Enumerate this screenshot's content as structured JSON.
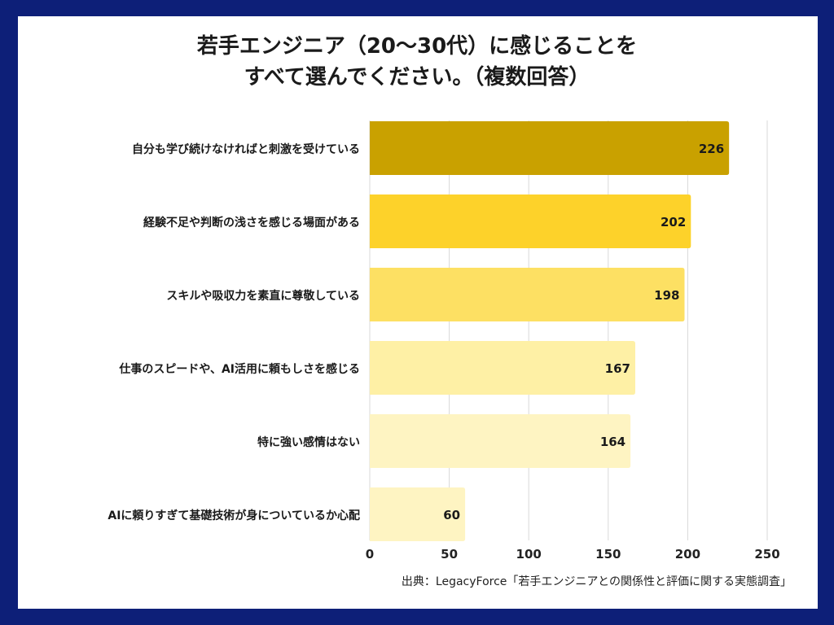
{
  "chart_data": {
    "type": "bar",
    "orientation": "horizontal",
    "title_lines": [
      "若手エンジニア（20〜30代）に感じることを",
      "すべて選んでください。（複数回答）"
    ],
    "categories": [
      "自分も学び続けなければと刺激を受けている",
      "経験不足や判断の浅さを感じる場面がある",
      "スキルや吸収力を素直に尊敬している",
      "仕事のスピードや、AI活用に頼もしさを感じる",
      "特に強い感情はない",
      "AIに頼りすぎて基礎技術が身についているか心配"
    ],
    "values": [
      226,
      202,
      198,
      167,
      164,
      60
    ],
    "colors": [
      "#c9a100",
      "#fdd22a",
      "#fde063",
      "#fef0a5",
      "#fef4c2",
      "#fef4c2"
    ],
    "xlim": [
      0,
      250
    ],
    "xticks": [
      0,
      50,
      100,
      150,
      200,
      250
    ],
    "xlabel": "",
    "ylabel": "",
    "grid": true
  },
  "source": "出典：LegacyForce「若手エンジニアとの関係性と評価に関する実態調査」"
}
